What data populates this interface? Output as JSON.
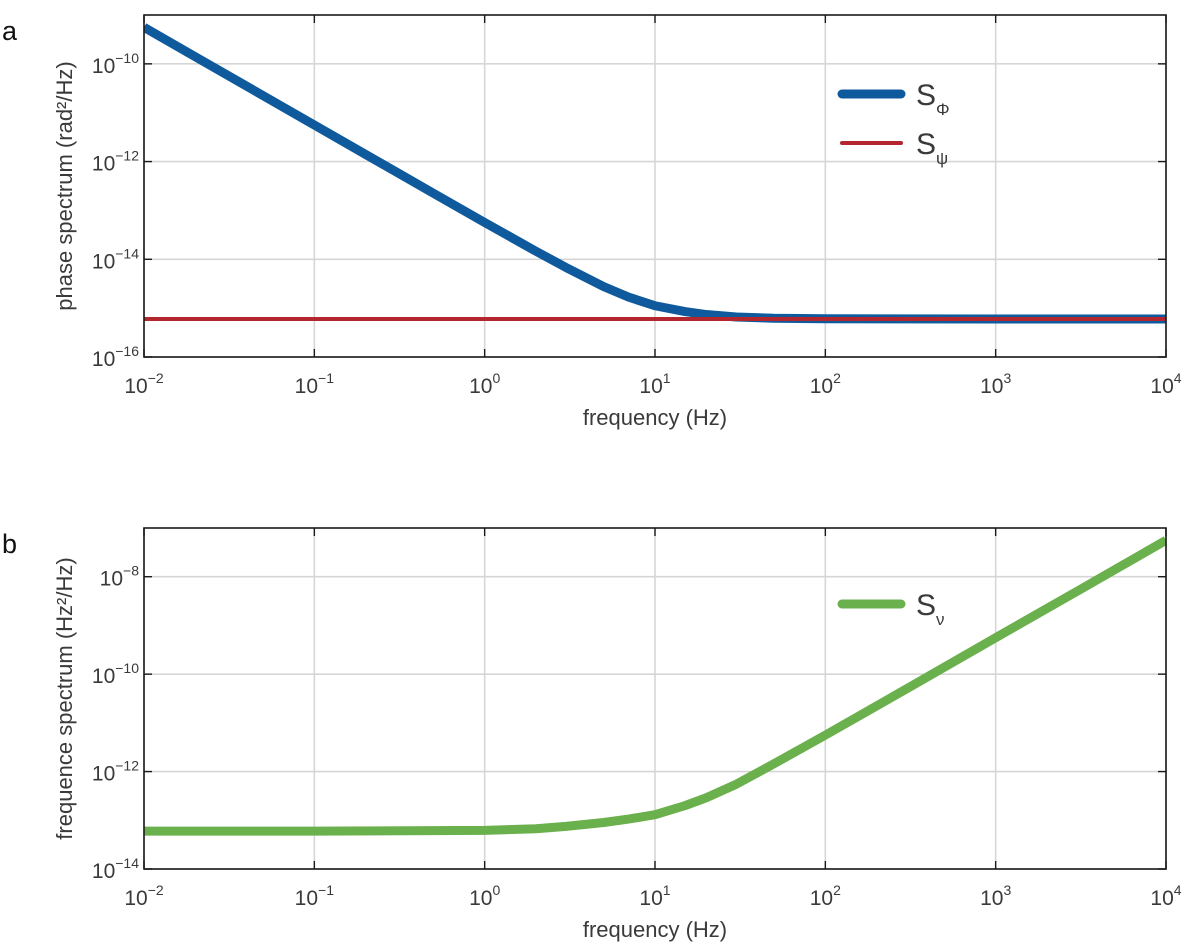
{
  "chart_data": [
    {
      "type": "line",
      "panel_label": "a",
      "xlabel": "frequency (Hz)",
      "ylabel": "phase spectrum (rad²/Hz)",
      "xscale": "log",
      "yscale": "log",
      "xlim": [
        0.01,
        10000
      ],
      "ylim": [
        1e-16,
        1e-09
      ],
      "x_ticks": [
        0.01,
        0.1,
        1,
        10,
        100,
        1000,
        10000
      ],
      "x_tick_labels": [
        {
          "base": "10",
          "exp": "−2"
        },
        {
          "base": "10",
          "exp": "−1"
        },
        {
          "base": "10",
          "exp": "0"
        },
        {
          "base": "10",
          "exp": "1"
        },
        {
          "base": "10",
          "exp": "2"
        },
        {
          "base": "10",
          "exp": "3"
        },
        {
          "base": "10",
          "exp": "4"
        }
      ],
      "y_ticks": [
        1e-16,
        1e-14,
        1e-12,
        1e-10
      ],
      "y_tick_labels": [
        {
          "base": "10",
          "exp": "−16"
        },
        {
          "base": "10",
          "exp": "−14"
        },
        {
          "base": "10",
          "exp": "−12"
        },
        {
          "base": "10",
          "exp": "−10"
        }
      ],
      "grid": true,
      "legend_position": "upper-right",
      "series": [
        {
          "name": "S",
          "name_sub": "Φ",
          "color": "#0f5a9c",
          "line_width": 9,
          "x": [
            0.01,
            0.02,
            0.05,
            0.1,
            0.2,
            0.5,
            1,
            2,
            3,
            5,
            7,
            10,
            15,
            20,
            30,
            50,
            100,
            1000,
            10000
          ],
          "y": [
            5.6e-10,
            1.4e-10,
            2.24e-11,
            5.6e-12,
            1.4e-12,
            2.25e-13,
            5.66e-14,
            1.46e-14,
            6.8e-15,
            2.76e-15,
            1.68e-15,
            1.12e-15,
            8.5e-16,
            7.4e-16,
            6.6e-16,
            6.2e-16,
            6.06e-16,
            6e-16,
            6e-16
          ]
        },
        {
          "name": "S",
          "name_sub": "ψ",
          "color": "#b3262e",
          "line_width": 4,
          "x": [
            0.01,
            10000
          ],
          "y": [
            6e-16,
            6e-16
          ]
        }
      ]
    },
    {
      "type": "line",
      "panel_label": "b",
      "xlabel": "frequency (Hz)",
      "ylabel": "frequence spectrum (Hz²/Hz)",
      "xscale": "log",
      "yscale": "log",
      "xlim": [
        0.01,
        10000
      ],
      "ylim": [
        1e-14,
        1e-07
      ],
      "x_ticks": [
        0.01,
        0.1,
        1,
        10,
        100,
        1000,
        10000
      ],
      "x_tick_labels": [
        {
          "base": "10",
          "exp": "−2"
        },
        {
          "base": "10",
          "exp": "−1"
        },
        {
          "base": "10",
          "exp": "0"
        },
        {
          "base": "10",
          "exp": "1"
        },
        {
          "base": "10",
          "exp": "2"
        },
        {
          "base": "10",
          "exp": "3"
        },
        {
          "base": "10",
          "exp": "4"
        }
      ],
      "y_ticks": [
        1e-14,
        1e-12,
        1e-10,
        1e-08
      ],
      "y_tick_labels": [
        {
          "base": "10",
          "exp": "−14"
        },
        {
          "base": "10",
          "exp": "−12"
        },
        {
          "base": "10",
          "exp": "−10"
        },
        {
          "base": "10",
          "exp": "−8"
        }
      ],
      "grid": true,
      "legend_position": "upper-right",
      "series": [
        {
          "name": "S",
          "name_sub": "ν",
          "color": "#6ab04c",
          "line_width": 9,
          "x": [
            0.01,
            0.1,
            1,
            2,
            3,
            5,
            7,
            10,
            15,
            20,
            30,
            50,
            100,
            300,
            1000,
            3000,
            10000
          ],
          "y": [
            6e-14,
            6e-14,
            6.2e-14,
            6.7e-14,
            7.5e-14,
            9e-14,
            1.06e-13,
            1.3e-13,
            2e-13,
            2.9e-13,
            5.5e-13,
            1.45e-12,
            5.6e-12,
            5e-11,
            5.6e-10,
            5e-09,
            5.6e-08
          ]
        }
      ]
    }
  ]
}
